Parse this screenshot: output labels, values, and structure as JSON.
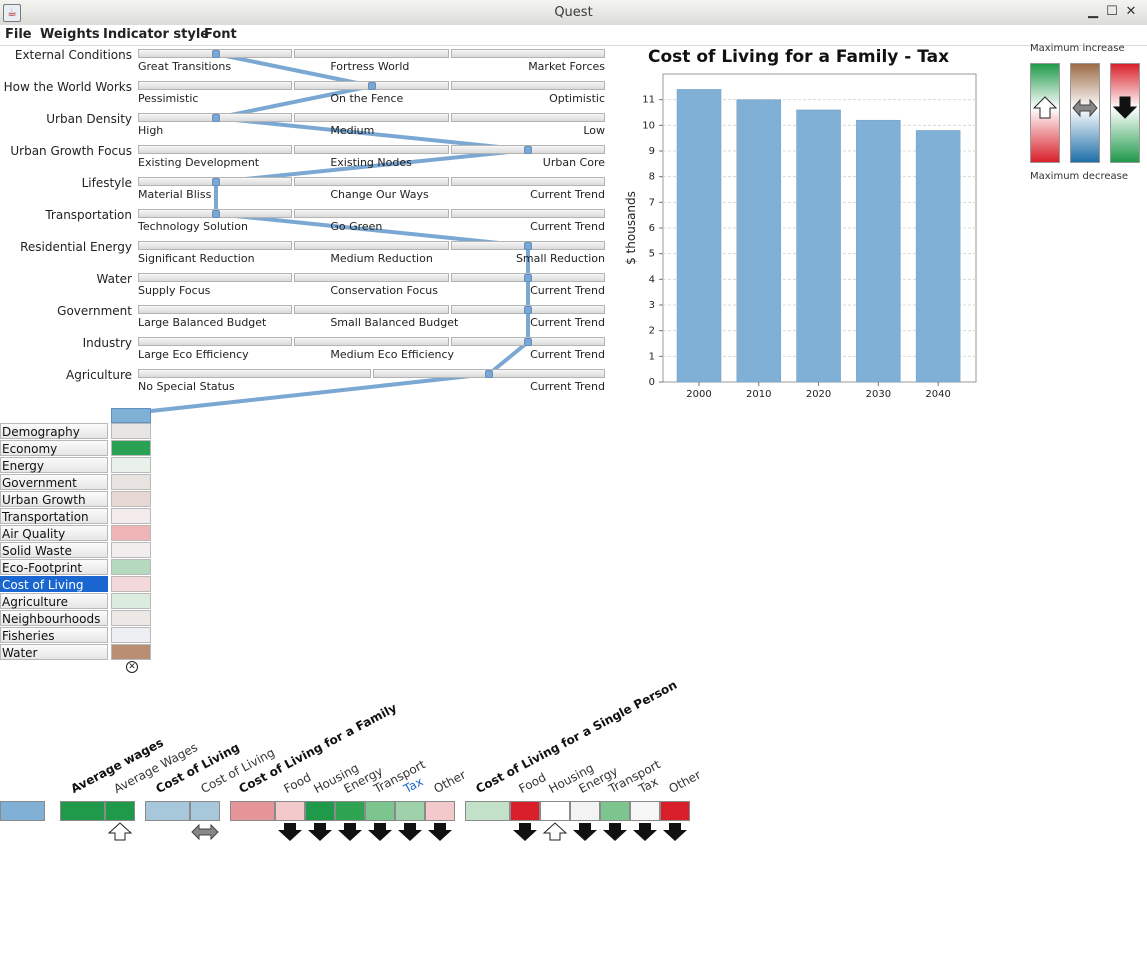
{
  "window": {
    "title": "Quest",
    "icon": "java-cup-icon",
    "controls": [
      "minimize-icon",
      "maximize-icon",
      "close-icon"
    ]
  },
  "menu": {
    "items": [
      "File",
      "Weights",
      "Indicator style",
      "Font"
    ]
  },
  "scenarios": [
    {
      "label": "External Conditions",
      "options": [
        "Great Transitions",
        "Fortress World",
        "Market Forces"
      ],
      "selected": 0
    },
    {
      "label": "How the World Works",
      "options": [
        "Pessimistic",
        "On the Fence",
        "Optimistic"
      ],
      "selected": 1
    },
    {
      "label": "Urban Density",
      "options": [
        "High",
        "Medium",
        "Low"
      ],
      "selected": 0
    },
    {
      "label": "Urban Growth Focus",
      "options": [
        "Existing Development",
        "Existing Nodes",
        "Urban Core"
      ],
      "selected": 2
    },
    {
      "label": "Lifestyle",
      "options": [
        "Material Bliss",
        "Change Our Ways",
        "Current Trend"
      ],
      "selected": 0
    },
    {
      "label": "Transportation",
      "options": [
        "Technology Solution",
        "Go Green",
        "Current Trend"
      ],
      "selected": 0
    },
    {
      "label": "Residential Energy",
      "options": [
        "Significant Reduction",
        "Medium Reduction",
        "Small Reduction"
      ],
      "selected": 2
    },
    {
      "label": "Water",
      "options": [
        "Supply Focus",
        "Conservation Focus",
        "Current Trend"
      ],
      "selected": 2
    },
    {
      "label": "Government",
      "options": [
        "Large Balanced Budget",
        "Small Balanced Budget",
        "Current Trend"
      ],
      "selected": 2
    },
    {
      "label": "Industry",
      "options": [
        "Large Eco Efficiency",
        "Medium Eco Efficiency",
        "Current Trend"
      ],
      "selected": 2
    },
    {
      "label": "Agriculture",
      "options": [
        "No Special Status",
        "Current Trend"
      ],
      "selected": 1
    }
  ],
  "chart_data": {
    "type": "bar",
    "title": "Cost of Living for a Family - Tax",
    "xlabel": "",
    "ylabel": "$ thousands",
    "categories": [
      "2000",
      "2010",
      "2020",
      "2030",
      "2040"
    ],
    "values": [
      11.4,
      11.0,
      10.6,
      10.2,
      9.8
    ],
    "ylim": [
      0,
      12
    ],
    "yticks": [
      0,
      1,
      2,
      3,
      4,
      5,
      6,
      7,
      8,
      9,
      10,
      11
    ],
    "grid": true,
    "bar_color": "#80b0d6"
  },
  "legend": {
    "max_increase": "Maximum increase",
    "max_decrease": "Maximum decrease",
    "bars": [
      {
        "name": "increase-good",
        "icon": "up-arrow-icon",
        "top": "#1f9a4a",
        "bottom": "#d9202a"
      },
      {
        "name": "neutral",
        "icon": "double-arrow-icon",
        "top": "#9c6b46",
        "bottom": "#1e6fa8"
      },
      {
        "name": "decrease-good",
        "icon": "down-arrow-icon",
        "top": "#d9202a",
        "bottom": "#1f9a4a"
      }
    ]
  },
  "indicators": [
    {
      "label": "Demography",
      "color": "#e8e6e4"
    },
    {
      "label": "Economy",
      "color": "#2aa152"
    },
    {
      "label": "Energy",
      "color": "#e9f1ea"
    },
    {
      "label": "Government",
      "color": "#e8e2e0"
    },
    {
      "label": "Urban Growth",
      "color": "#e7d8d4"
    },
    {
      "label": "Transportation",
      "color": "#f3ebeb"
    },
    {
      "label": "Air Quality",
      "color": "#eeb4b6"
    },
    {
      "label": "Solid Waste",
      "color": "#f3eeee"
    },
    {
      "label": "Eco-Footprint",
      "color": "#b5d9bf"
    },
    {
      "label": "Cost of Living",
      "color": "#f3d7d9",
      "selected": true
    },
    {
      "label": "Agriculture",
      "color": "#dcebe0"
    },
    {
      "label": "Neighbourhoods",
      "color": "#ede8e6"
    },
    {
      "label": "Fisheries",
      "color": "#eeeff2"
    },
    {
      "label": "Water",
      "color": "#b98e72"
    }
  ],
  "breakdown": {
    "groups": [
      {
        "title": "Average wages",
        "subs": [
          "Average Wages"
        ]
      },
      {
        "title": "Cost of Living",
        "subs": [
          "Cost of Living"
        ]
      },
      {
        "title": "Cost of Living for a Family",
        "subs": [
          "Food",
          "Housing",
          "Energy",
          "Transport",
          "Tax",
          "Other"
        ]
      },
      {
        "title": "Cost of Living for a Single Person",
        "subs": [
          "Food",
          "Housing",
          "Energy",
          "Transport",
          "Tax",
          "Other"
        ]
      }
    ],
    "cells": [
      {
        "color": "#80b0d6"
      },
      {
        "color": "#1f9a4a"
      },
      {
        "color": "#1f9a4a",
        "arrow": "up-arrow-icon"
      },
      {
        "color": "#a7c7da"
      },
      {
        "color": "#a7c7da",
        "arrow": "double-arrow-icon"
      },
      {
        "color": "#e59598"
      },
      {
        "color": "#f3c9cb",
        "arrow": "down-arrow-icon"
      },
      {
        "color": "#1f9a4a",
        "arrow": "down-arrow-icon"
      },
      {
        "color": "#2ea352",
        "arrow": "down-arrow-icon"
      },
      {
        "color": "#7cc58e",
        "arrow": "down-arrow-icon"
      },
      {
        "color": "#9fd2aa",
        "arrow": "down-arrow-icon"
      },
      {
        "color": "#f3c9cb",
        "arrow": "down-arrow-icon"
      },
      {
        "color": "#c3e0c9"
      },
      {
        "color": "#d9202a",
        "arrow": "down-arrow-icon"
      },
      {
        "color": "#ffffff",
        "arrow": "up-arrow-icon"
      },
      {
        "color": "#f3f3f3",
        "arrow": "down-arrow-icon"
      },
      {
        "color": "#7cc58e",
        "arrow": "down-arrow-icon"
      },
      {
        "color": "#f7f7f7",
        "arrow": "down-arrow-icon"
      },
      {
        "color": "#d9202a",
        "arrow": "down-arrow-icon"
      }
    ]
  }
}
